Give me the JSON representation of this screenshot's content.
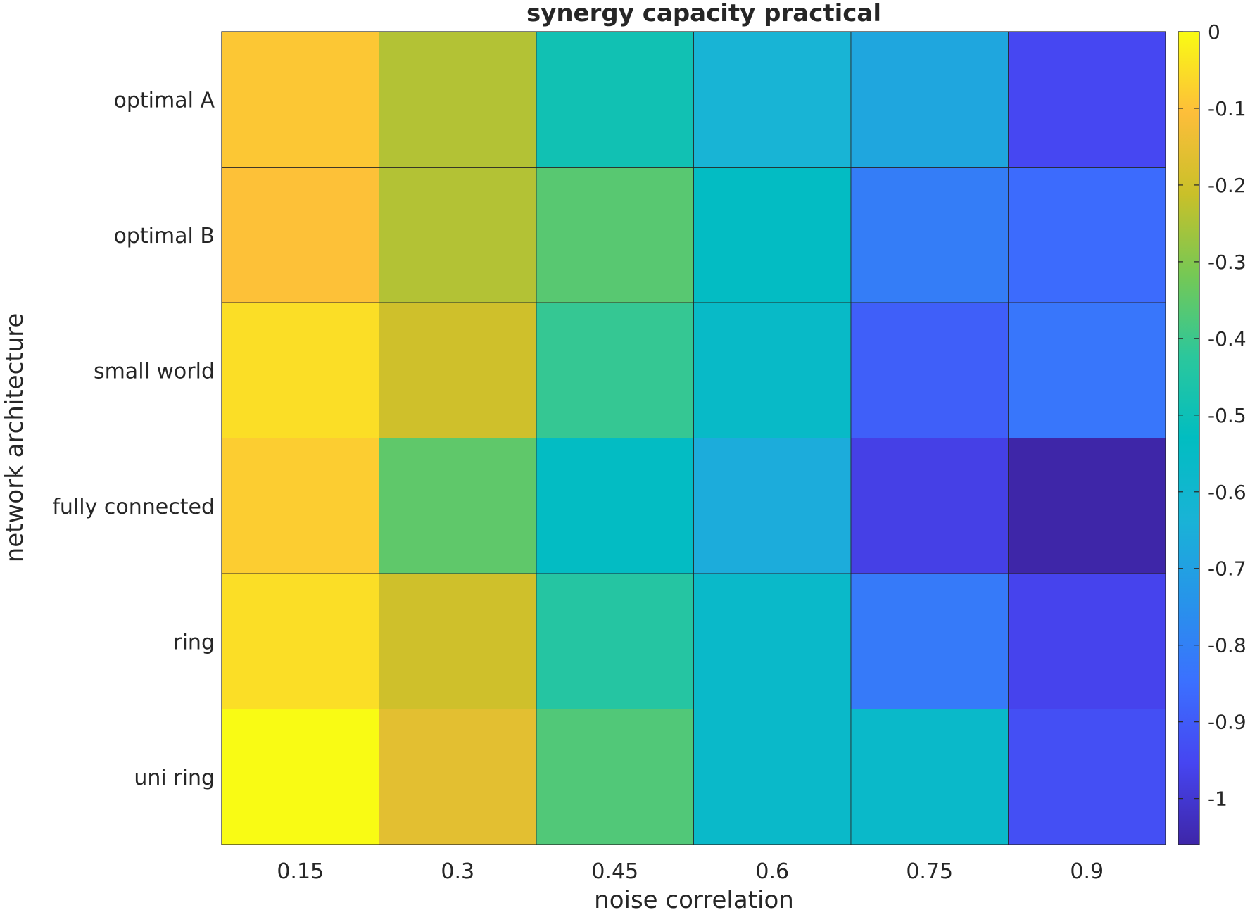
{
  "chart_data": {
    "type": "heatmap",
    "title": "synergy capacity practical",
    "xlabel": "noise correlation",
    "ylabel": "network architecture",
    "x": [
      "0.15",
      "0.3",
      "0.45",
      "0.6",
      "0.75",
      "0.9"
    ],
    "y": [
      "optimal A",
      "optimal B",
      "small world",
      "fully connected",
      "ring",
      "uni ring"
    ],
    "values": [
      [
        -0.09,
        -0.24,
        -0.49,
        -0.63,
        -0.68,
        -0.95
      ],
      [
        -0.1,
        -0.24,
        -0.36,
        -0.54,
        -0.81,
        -0.86
      ],
      [
        -0.05,
        -0.2,
        -0.41,
        -0.56,
        -0.89,
        -0.83
      ],
      [
        -0.08,
        -0.35,
        -0.54,
        -0.66,
        -0.97,
        -1.06
      ],
      [
        -0.05,
        -0.2,
        -0.44,
        -0.57,
        -0.82,
        -0.96
      ],
      [
        0.0,
        -0.16,
        -0.37,
        -0.57,
        -0.57,
        -0.93
      ]
    ],
    "colorbar": {
      "limits": [
        -1.06,
        0.0
      ],
      "ticks": [
        "0",
        "-0.1",
        "-0.2",
        "-0.3",
        "-0.4",
        "-0.5",
        "-0.6",
        "-0.7",
        "-0.8",
        "-0.9",
        "-1"
      ],
      "colormap": "parula"
    }
  }
}
